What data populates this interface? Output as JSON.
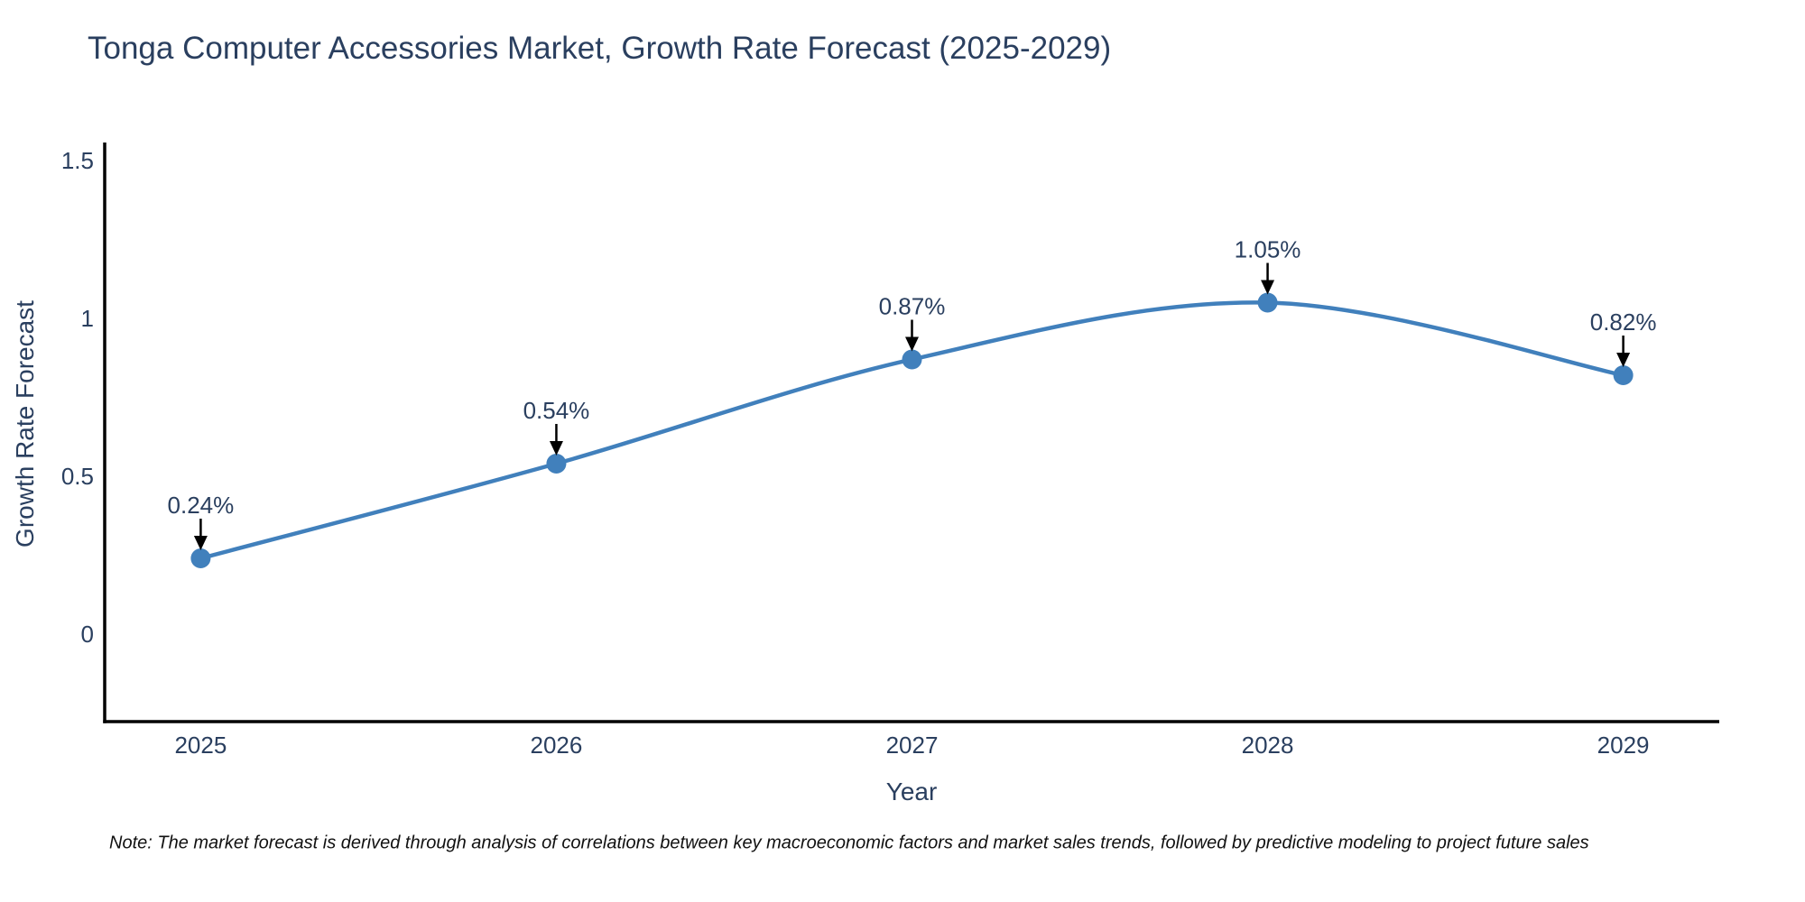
{
  "title": "Tonga Computer Accessories Market, Growth Rate Forecast (2025-2029)",
  "note": "Note: The market forecast is derived through analysis of correlations between key macroeconomic factors and market sales trends, followed by predictive modeling to project future sales",
  "chart_data": {
    "type": "line",
    "title": "Tonga Computer Accessories Market, Growth Rate Forecast (2025-2029)",
    "xlabel": "Year",
    "ylabel": "Growth Rate Forecast",
    "x": [
      2025,
      2026,
      2027,
      2028,
      2029
    ],
    "x_tick_labels": [
      "2025",
      "2026",
      "2027",
      "2028",
      "2029"
    ],
    "series": [
      {
        "name": "Growth Rate Forecast",
        "values": [
          0.24,
          0.54,
          0.87,
          1.05,
          0.82
        ],
        "point_labels": [
          "0.24%",
          "0.54%",
          "0.87%",
          "1.05%",
          "0.82%"
        ]
      }
    ],
    "yticks": [
      0,
      0.5,
      1,
      1.5
    ],
    "ytick_labels": [
      "0",
      "0.5",
      "1",
      "1.5"
    ],
    "xlim": [
      2024.73,
      2029.27
    ],
    "ylim": [
      -0.277,
      1.557
    ],
    "grid": false,
    "legend": false,
    "line_shape": "spline",
    "annotations": "black arrows pointing down at each marker with percent labels above",
    "colors": {
      "line": "#4180bc",
      "marker": "#4180bc",
      "arrow": "#000000",
      "text": "#2a3f5f",
      "axis": "#000000",
      "note": "#111111",
      "background": "#ffffff"
    }
  }
}
